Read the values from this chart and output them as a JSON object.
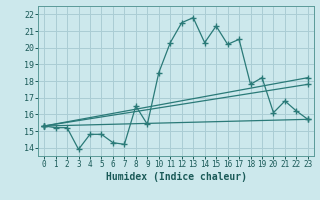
{
  "xlabel": "Humidex (Indice chaleur)",
  "background_color": "#cce8ec",
  "grid_color": "#aacdd4",
  "line_color": "#2a7a78",
  "xlim": [
    -0.5,
    23.5
  ],
  "ylim": [
    13.5,
    22.5
  ],
  "yticks": [
    14,
    15,
    16,
    17,
    18,
    19,
    20,
    21,
    22
  ],
  "xticks": [
    0,
    1,
    2,
    3,
    4,
    5,
    6,
    7,
    8,
    9,
    10,
    11,
    12,
    13,
    14,
    15,
    16,
    17,
    18,
    19,
    20,
    21,
    22,
    23
  ],
  "series": [
    {
      "x": [
        0,
        1,
        2,
        3,
        4,
        5,
        6,
        7,
        8,
        9,
        10,
        11,
        12,
        13,
        14,
        15,
        16,
        17,
        18,
        19,
        20,
        21,
        22,
        23
      ],
      "y": [
        15.3,
        15.2,
        15.2,
        13.9,
        14.8,
        14.8,
        14.3,
        14.2,
        16.5,
        15.4,
        18.5,
        20.3,
        21.5,
        21.8,
        20.3,
        21.3,
        20.2,
        20.5,
        17.8,
        18.2,
        16.1,
        16.8,
        16.2,
        15.7
      ]
    },
    {
      "x": [
        0,
        23
      ],
      "y": [
        15.3,
        15.7
      ]
    },
    {
      "x": [
        0,
        23
      ],
      "y": [
        15.3,
        17.8
      ]
    },
    {
      "x": [
        0,
        23
      ],
      "y": [
        15.3,
        18.2
      ]
    }
  ],
  "xlabel_fontsize": 7,
  "tick_fontsize": 5.5,
  "tick_color": "#1a5a58",
  "xlabel_color": "#1a5a58",
  "spine_color": "#5a9a98"
}
